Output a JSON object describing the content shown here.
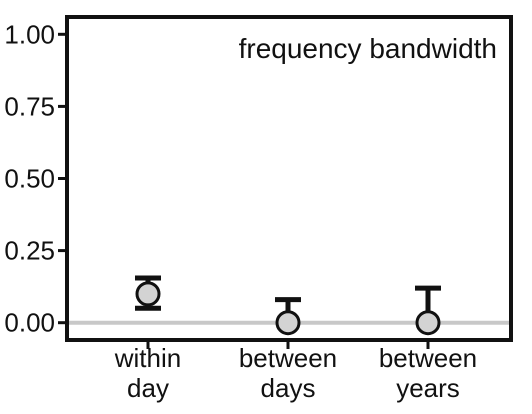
{
  "chart_data": {
    "type": "scatter",
    "title": "frequency bandwidth",
    "title_position": "top-right",
    "xlabel": "",
    "ylabel": "",
    "categories": [
      [
        "within",
        "day"
      ],
      [
        "between",
        "days"
      ],
      [
        "between",
        "years"
      ]
    ],
    "ylim": [
      -0.06,
      1.06
    ],
    "yticks": [
      0.0,
      0.25,
      0.5,
      0.75,
      1.0
    ],
    "ytick_labels": [
      "0.00",
      "0.25",
      "0.50",
      "0.75",
      "1.00"
    ],
    "reference_line": 0.0,
    "grid": false,
    "points": [
      {
        "value": 0.1,
        "lower": 0.05,
        "upper": 0.155
      },
      {
        "value": 0.0,
        "upper": 0.08
      },
      {
        "value": 0.0,
        "upper": 0.12
      }
    ],
    "colors": {
      "marker_fill": "#d3d3d3",
      "marker_stroke": "#111111",
      "errorbar": "#111111",
      "reference_line": "#c8c8c8",
      "axis": "#111111"
    }
  }
}
